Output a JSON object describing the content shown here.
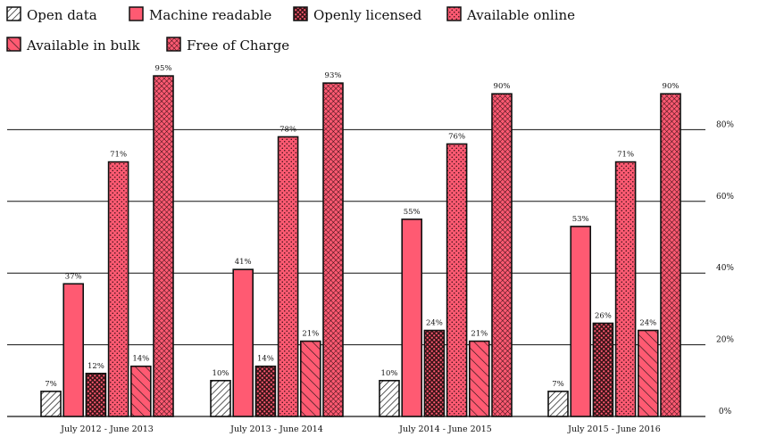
{
  "chart_data": {
    "type": "bar",
    "title": "",
    "xlabel": "",
    "ylabel": "",
    "ylim": [
      0,
      100
    ],
    "y_axis_position": "right",
    "y_ticks": [
      "0%",
      "20%",
      "40%",
      "60%",
      "80%"
    ],
    "grid": true,
    "legend_position": "top-left",
    "categories": [
      "July 2012 - June 2013",
      "July 2013 - June 2014",
      "July 2014 - June 2015",
      "July 2015 - June 2016"
    ],
    "series": [
      {
        "name": "Open data",
        "values": [
          7,
          10,
          10,
          7
        ],
        "pattern": "hatch-white",
        "color": "#ffffff"
      },
      {
        "name": "Machine readable",
        "values": [
          37,
          41,
          55,
          53
        ],
        "pattern": "solid",
        "color": "#ff5a72"
      },
      {
        "name": "Openly licensed",
        "values": [
          12,
          14,
          24,
          26
        ],
        "pattern": "checker-dark",
        "color": "#ff5a72"
      },
      {
        "name": "Available online",
        "values": [
          71,
          78,
          76,
          71
        ],
        "pattern": "dots",
        "color": "#ff5a72"
      },
      {
        "name": "Available in bulk",
        "values": [
          14,
          21,
          21,
          24
        ],
        "pattern": "hatch-pink",
        "color": "#ff5a72"
      },
      {
        "name": "Free of Charge",
        "values": [
          95,
          93,
          90,
          90
        ],
        "pattern": "crosshatch",
        "color": "#ff5a72"
      }
    ]
  }
}
